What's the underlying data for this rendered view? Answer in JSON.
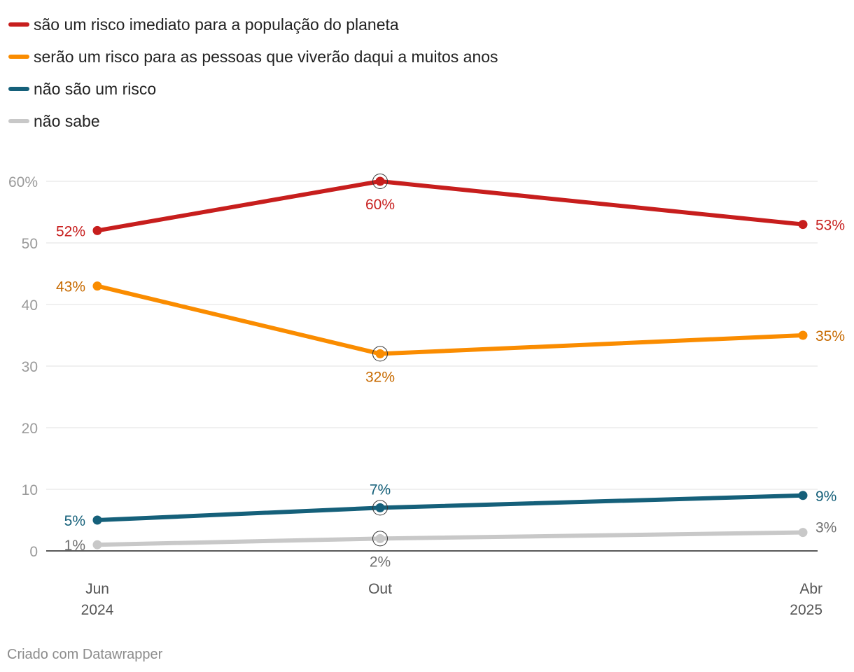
{
  "chart_data": {
    "type": "line",
    "categories": [
      {
        "month": "Jun",
        "year": "2024"
      },
      {
        "month": "Out",
        "year": ""
      },
      {
        "month": "Abr",
        "year": "2025"
      }
    ],
    "series": [
      {
        "name": "são um risco imediato para a população do planeta",
        "color": "#c71e1d",
        "label_color": "#c71e1d",
        "values": [
          52,
          60,
          53
        ],
        "labels": [
          "52%",
          "60%",
          "53%"
        ]
      },
      {
        "name": "serão um risco para as pessoas que viverão daqui a muitos anos",
        "color": "#fa8c00",
        "label_color": "#c76a00",
        "values": [
          43,
          32,
          35
        ],
        "labels": [
          "43%",
          "32%",
          "35%"
        ]
      },
      {
        "name": "não são um risco",
        "color": "#15607a",
        "label_color": "#15607a",
        "values": [
          5,
          7,
          9
        ],
        "labels": [
          "5%",
          "7%",
          "9%"
        ]
      },
      {
        "name": "não sabe",
        "color": "#c8c8c8",
        "label_color": "#707070",
        "values": [
          1,
          2,
          3
        ],
        "labels": [
          "1%",
          "2%",
          "3%"
        ]
      }
    ],
    "yticks": [
      {
        "value": 0,
        "label": "0"
      },
      {
        "value": 10,
        "label": "10"
      },
      {
        "value": 20,
        "label": "20"
      },
      {
        "value": 30,
        "label": "30"
      },
      {
        "value": 40,
        "label": "40"
      },
      {
        "value": 50,
        "label": "50"
      },
      {
        "value": 60,
        "label": "60%"
      }
    ],
    "ylim": [
      0,
      60
    ],
    "grid": true,
    "legend_position": "top-left"
  },
  "footer": {
    "credit": "Criado com Datawrapper"
  }
}
